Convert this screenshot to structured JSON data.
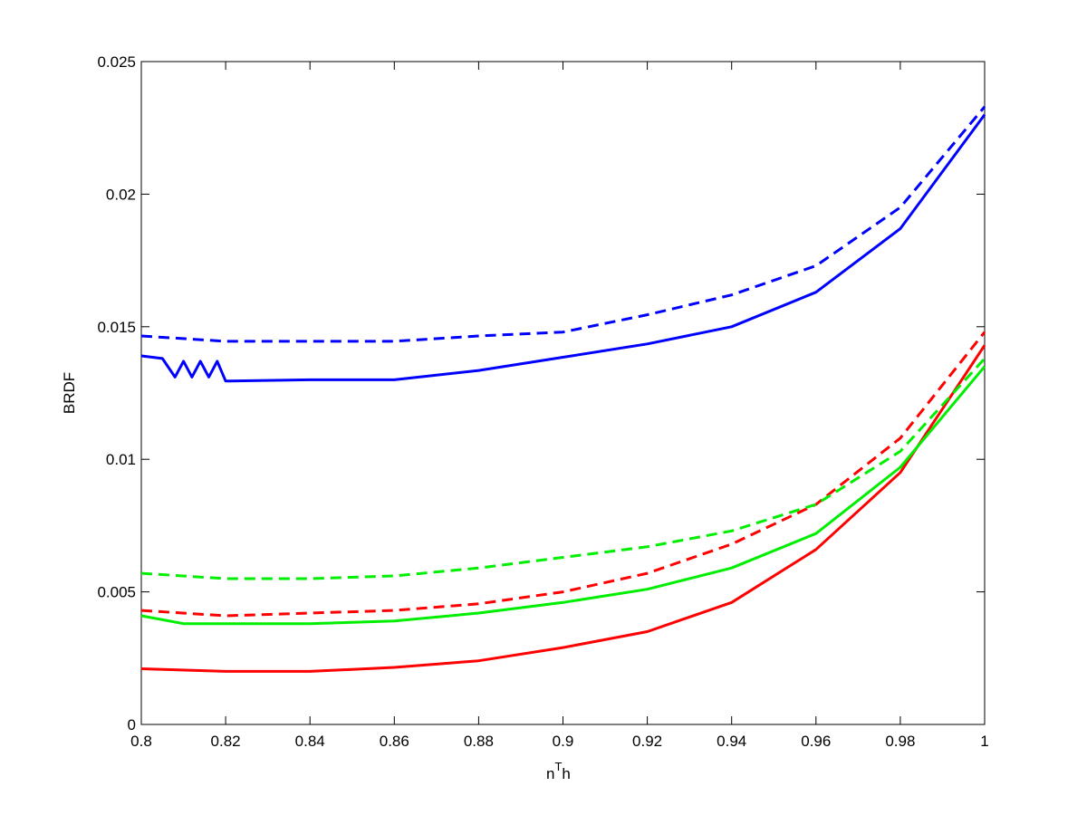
{
  "chart_data": {
    "type": "line",
    "title": "",
    "xlabel": "n",
    "xlabel_superscript": "T",
    "xlabel_suffix": "h",
    "ylabel": "BRDF",
    "xlim": [
      0.8,
      1.0
    ],
    "ylim": [
      0,
      0.025
    ],
    "grid": false,
    "legend": "none",
    "x_ticks": [
      0.8,
      0.82,
      0.84,
      0.86,
      0.88,
      0.9,
      0.92,
      0.94,
      0.96,
      0.98,
      1.0
    ],
    "x_tick_labels": [
      "0.8",
      "0.82",
      "0.84",
      "0.86",
      "0.88",
      "0.9",
      "0.92",
      "0.94",
      "0.96",
      "0.98",
      "1"
    ],
    "y_ticks": [
      0,
      0.005,
      0.01,
      0.015,
      0.02,
      0.025
    ],
    "y_tick_labels": [
      "0",
      "0.005",
      "0.01",
      "0.015",
      "0.02",
      "0.025"
    ],
    "series": [
      {
        "color": "#0000ff",
        "style": "dashed",
        "x": [
          0.8,
          0.82,
          0.84,
          0.86,
          0.88,
          0.9,
          0.92,
          0.94,
          0.96,
          0.98,
          1.0
        ],
        "y": [
          0.01465,
          0.01445,
          0.01445,
          0.01445,
          0.01465,
          0.0148,
          0.01545,
          0.0162,
          0.0173,
          0.0195,
          0.0233
        ]
      },
      {
        "color": "#0000ff",
        "style": "solid",
        "x": [
          0.8,
          0.805,
          0.808,
          0.81,
          0.812,
          0.814,
          0.816,
          0.818,
          0.82,
          0.84,
          0.86,
          0.88,
          0.9,
          0.92,
          0.94,
          0.96,
          0.98,
          1.0
        ],
        "y": [
          0.0139,
          0.0138,
          0.0131,
          0.0137,
          0.0131,
          0.0137,
          0.0131,
          0.0137,
          0.01295,
          0.013,
          0.013,
          0.01335,
          0.01385,
          0.01435,
          0.015,
          0.0163,
          0.0187,
          0.023
        ]
      },
      {
        "color": "#ff0000",
        "style": "dashed",
        "x": [
          0.8,
          0.82,
          0.84,
          0.86,
          0.88,
          0.9,
          0.92,
          0.94,
          0.96,
          0.98,
          1.0
        ],
        "y": [
          0.0043,
          0.0041,
          0.0042,
          0.0043,
          0.00455,
          0.005,
          0.0057,
          0.0068,
          0.0083,
          0.0108,
          0.0148
        ]
      },
      {
        "color": "#ff0000",
        "style": "solid",
        "x": [
          0.8,
          0.82,
          0.84,
          0.86,
          0.88,
          0.9,
          0.92,
          0.94,
          0.96,
          0.98,
          1.0
        ],
        "y": [
          0.0021,
          0.002,
          0.002,
          0.00215,
          0.0024,
          0.0029,
          0.0035,
          0.0046,
          0.0066,
          0.0095,
          0.0143
        ]
      },
      {
        "color": "#00ee00",
        "style": "dashed",
        "x": [
          0.8,
          0.82,
          0.84,
          0.86,
          0.88,
          0.9,
          0.92,
          0.94,
          0.96,
          0.98,
          1.0
        ],
        "y": [
          0.0057,
          0.0055,
          0.0055,
          0.0056,
          0.0059,
          0.0063,
          0.0067,
          0.0073,
          0.0083,
          0.0103,
          0.0138
        ]
      },
      {
        "color": "#00ee00",
        "style": "solid",
        "x": [
          0.8,
          0.81,
          0.82,
          0.84,
          0.86,
          0.88,
          0.9,
          0.92,
          0.94,
          0.96,
          0.98,
          1.0
        ],
        "y": [
          0.0041,
          0.0038,
          0.0038,
          0.0038,
          0.0039,
          0.0042,
          0.0046,
          0.0051,
          0.0059,
          0.0072,
          0.0097,
          0.0135
        ]
      }
    ]
  }
}
